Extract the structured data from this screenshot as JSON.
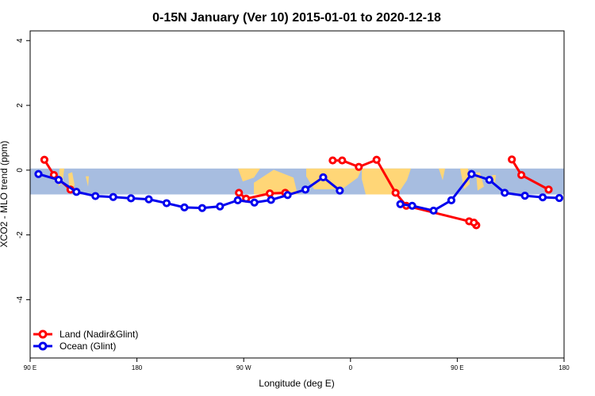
{
  "chart_data": {
    "type": "line",
    "title": "0-15N January (Ver 10)   2015-01-01 to 2020-12-18",
    "xlabel": "Longitude (deg E)",
    "ylabel": "XCO2 - MLO trend (ppm)",
    "x_ticks": [
      {
        "value": 90,
        "label": "90 E"
      },
      {
        "value": 180,
        "label": "180"
      },
      {
        "value": 270,
        "label": "90 W"
      },
      {
        "value": 360,
        "label": "0"
      },
      {
        "value": 450,
        "label": "90 E"
      },
      {
        "value": 540,
        "label": "180"
      }
    ],
    "y_ticks": [
      -4,
      -2,
      0,
      2,
      4
    ],
    "xlim": [
      90,
      540
    ],
    "ylim": [
      -5.8,
      4.3
    ],
    "map_band": {
      "y_top": 0.05,
      "y_bottom": -0.75
    },
    "colors": {
      "ocean": "#a7bde0",
      "land": "#ffd677",
      "land_series": "#ff0000",
      "ocean_series": "#0000ee"
    },
    "series": [
      {
        "name": "Land (Nadir&Glint)",
        "color": "#ff0000",
        "segments": [
          [
            [
              102,
              0.32
            ],
            [
              110,
              -0.15
            ],
            [
              124,
              -0.6
            ]
          ],
          [
            [
              266,
              -0.7
            ],
            [
              272,
              -0.88
            ],
            [
              292,
              -0.72
            ],
            [
              305,
              -0.7
            ]
          ],
          [
            [
              345,
              0.3
            ],
            [
              353,
              0.3
            ],
            [
              367,
              0.1
            ],
            [
              382,
              0.32
            ],
            [
              398,
              -0.7
            ],
            [
              407,
              -1.1
            ],
            [
              460,
              -1.58
            ],
            [
              466,
              -1.7
            ],
            [
              464,
              -1.62
            ]
          ],
          [
            [
              496,
              0.33
            ],
            [
              504,
              -0.15
            ],
            [
              527,
              -0.6
            ]
          ]
        ]
      },
      {
        "name": "Ocean (Glint)",
        "color": "#0000ee",
        "segments": [
          [
            [
              97,
              -0.12
            ],
            [
              114,
              -0.3
            ],
            [
              129,
              -0.67
            ],
            [
              145,
              -0.8
            ],
            [
              160,
              -0.83
            ],
            [
              175,
              -0.87
            ],
            [
              190,
              -0.9
            ],
            [
              205,
              -1.02
            ],
            [
              220,
              -1.15
            ],
            [
              235,
              -1.17
            ],
            [
              250,
              -1.12
            ],
            [
              265,
              -0.93
            ],
            [
              279,
              -1.0
            ],
            [
              293,
              -0.92
            ],
            [
              307,
              -0.77
            ],
            [
              322,
              -0.6
            ],
            [
              337,
              -0.22
            ],
            [
              351,
              -0.63
            ]
          ],
          [
            [
              402,
              -1.05
            ],
            [
              412,
              -1.1
            ],
            [
              430,
              -1.25
            ],
            [
              445,
              -0.93
            ],
            [
              462,
              -0.12
            ],
            [
              477,
              -0.3
            ],
            [
              490,
              -0.7
            ],
            [
              507,
              -0.79
            ],
            [
              522,
              -0.84
            ],
            [
              536,
              -0.86
            ]
          ]
        ]
      }
    ],
    "legend": {
      "position": "bottom-left"
    }
  }
}
